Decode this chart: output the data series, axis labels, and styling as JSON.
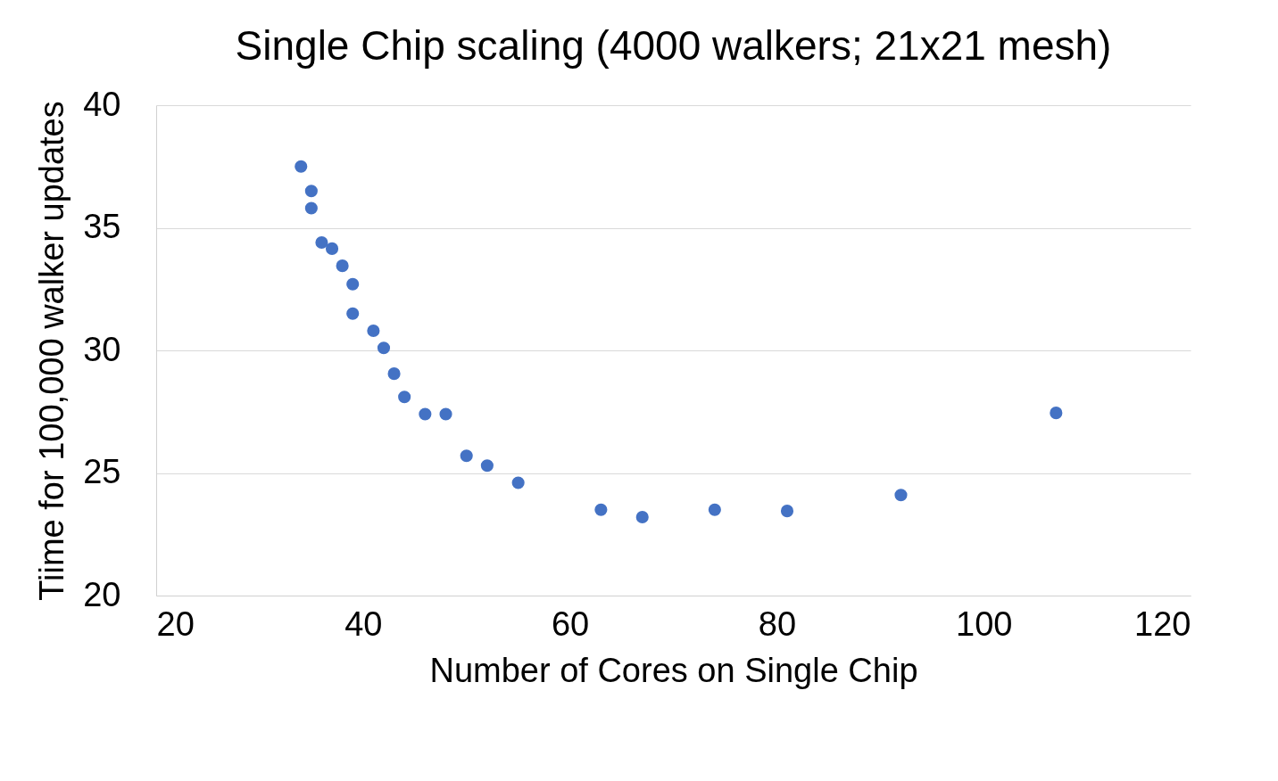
{
  "chart_data": {
    "type": "scatter",
    "title": "Single Chip scaling (4000 walkers; 21x21 mesh)",
    "xlabel": "Number of Cores on Single Chip",
    "ylabel": "Tiime for 100,000 walker updates",
    "x": [
      34,
      35,
      35,
      36,
      37,
      38,
      39,
      39,
      41,
      42,
      43,
      44,
      46,
      48,
      50,
      52,
      55,
      63,
      67,
      74,
      81,
      92,
      107
    ],
    "series": [
      {
        "color": "#4472c4",
        "values": [
          37.5,
          36.5,
          35.8,
          34.4,
          34.15,
          33.45,
          32.7,
          31.5,
          30.8,
          30.1,
          29.05,
          28.1,
          27.4,
          27.4,
          25.7,
          25.3,
          24.6,
          23.5,
          23.2,
          23.5,
          23.45,
          24.1,
          27.45
        ]
      }
    ],
    "xlim": [
      20,
      120
    ],
    "xticks": [
      20,
      40,
      60,
      80,
      100,
      120
    ],
    "ylim": [
      20,
      40
    ],
    "yticks": [
      20,
      25,
      30,
      35,
      40
    ],
    "grid": "y",
    "marker": "circle"
  }
}
